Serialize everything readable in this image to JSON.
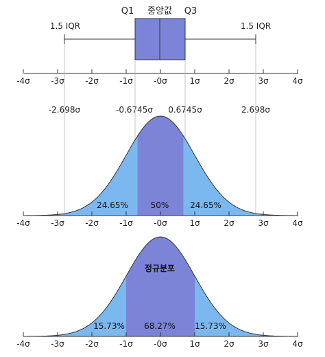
{
  "colors": {
    "box_fill": "#7b84d6",
    "outline": "#2e3440",
    "tail_fill": "#7bb8f0",
    "center_fill": "#7b84d6",
    "guide": "#b8b8b8"
  },
  "box": {
    "q1_label": "Q1",
    "median_label": "중앙값",
    "q3_label": "Q3",
    "left_whisker_label": "1.5 IQR",
    "right_whisker_label": "1.5 IQR"
  },
  "axis": {
    "ticks": [
      {
        "v": -4,
        "label": "-4σ"
      },
      {
        "v": -3,
        "label": "-3σ"
      },
      {
        "v": -2,
        "label": "-2σ"
      },
      {
        "v": -1,
        "label": "-1σ"
      },
      {
        "v": 0,
        "label": "-0σ"
      },
      {
        "v": 1,
        "label": "1σ"
      },
      {
        "v": 2,
        "label": "2σ"
      },
      {
        "v": 3,
        "label": "3σ"
      },
      {
        "v": 4,
        "label": "4σ"
      }
    ]
  },
  "markers": [
    {
      "v": -2.698,
      "label": "-2.698σ"
    },
    {
      "v": -0.6745,
      "label": "-0.6745σ"
    },
    {
      "v": 0.6745,
      "label": "0.6745σ"
    },
    {
      "v": 2.698,
      "label": "2.698σ"
    }
  ],
  "curve1": {
    "left_pct": "24.65%",
    "center_pct": "50%",
    "right_pct": "24.65%"
  },
  "curve2": {
    "title": "정규분포",
    "left_pct": "15.73%",
    "center_pct": "68.27%",
    "right_pct": "15.73%"
  }
}
